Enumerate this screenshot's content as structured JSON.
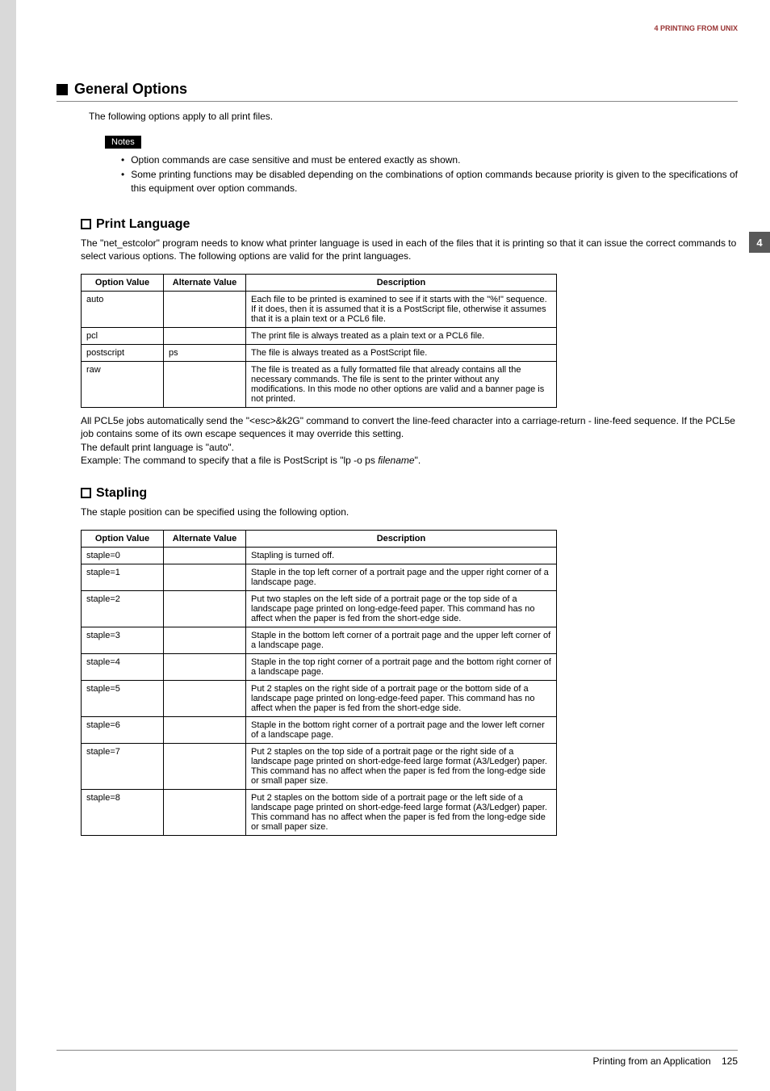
{
  "runningHeader": "4 PRINTING FROM UNIX",
  "chapterTab": "4",
  "section": {
    "title": "General Options",
    "intro": "The following options apply to all print files."
  },
  "notes": {
    "label": "Notes",
    "items": [
      "Option commands are case sensitive and must be entered exactly as shown.",
      "Some printing functions may be disabled depending on the combinations of option commands because priority is given to the specifications of this equipment over option commands."
    ]
  },
  "printLanguage": {
    "title": "Print Language",
    "intro": "The \"net_estcolor\" program needs to know what printer language is used in each of the files that it is printing so that it can issue the correct commands to select various options. The following options are valid for the print languages.",
    "columns": [
      "Option Value",
      "Alternate Value",
      "Description"
    ],
    "rows": [
      {
        "opt": "auto",
        "alt": "",
        "desc": "Each file to be printed is examined to see if it starts with the \"%!\" sequence. If it does, then it is assumed that it is a PostScript file, otherwise it assumes that it is a plain text or a PCL6 file."
      },
      {
        "opt": "pcl",
        "alt": "",
        "desc": "The print file is always treated as a plain text or a PCL6 file."
      },
      {
        "opt": "postscript",
        "alt": "ps",
        "desc": "The file is always treated as a PostScript file."
      },
      {
        "opt": "raw",
        "alt": "",
        "desc": "The file is treated as a fully formatted file that already contains all the necessary commands. The file is sent to the printer without any modifications. In this mode no other options are valid and a banner page is not printed."
      }
    ],
    "post1": "All PCL5e jobs automatically send the \"<esc>&k2G\" command to convert the line-feed character into a carriage-return - line-feed sequence. If the PCL5e job contains some of its own escape sequences it may override this setting.",
    "post2": "The default print language is \"auto\".",
    "post3a": "Example: The command to specify that a file is PostScript is \"lp -o ps ",
    "post3b": "filename",
    "post3c": "\"."
  },
  "stapling": {
    "title": "Stapling",
    "intro": "The staple position can be specified using the following option.",
    "columns": [
      "Option Value",
      "Alternate Value",
      "Description"
    ],
    "rows": [
      {
        "opt": "staple=0",
        "alt": "",
        "desc": "Stapling is turned off."
      },
      {
        "opt": "staple=1",
        "alt": "",
        "desc": "Staple in the top left corner of a portrait page and the upper right corner of a landscape page."
      },
      {
        "opt": "staple=2",
        "alt": "",
        "desc": "Put two staples on the left side of a portrait page or the top side of a landscape page printed on long-edge-feed paper. This command has no affect when the paper is fed from the short-edge side."
      },
      {
        "opt": "staple=3",
        "alt": "",
        "desc": "Staple in the bottom left corner of a portrait page and the upper left corner of a landscape page."
      },
      {
        "opt": "staple=4",
        "alt": "",
        "desc": "Staple in the top right corner of a portrait page and the bottom right corner of a landscape page."
      },
      {
        "opt": "staple=5",
        "alt": "",
        "desc": "Put 2 staples on the right side of a portrait page or the bottom side of a landscape page printed on long-edge-feed paper. This command has no affect when the paper is fed from the short-edge side."
      },
      {
        "opt": "staple=6",
        "alt": "",
        "desc": "Staple in the bottom right corner of a portrait page and the lower left corner of a landscape page."
      },
      {
        "opt": "staple=7",
        "alt": "",
        "desc": "Put 2 staples on the top side of a portrait page or the right side of a landscape page printed on short-edge-feed large format (A3/Ledger) paper. This command has no affect when the paper is fed from the long-edge side or small paper size."
      },
      {
        "opt": "staple=8",
        "alt": "",
        "desc": "Put 2 staples on the bottom side of a portrait page or the left side of a landscape page printed on short-edge-feed large format (A3/Ledger) paper. This command has no affect when the paper is fed from the long-edge side or small paper size."
      }
    ]
  },
  "footer": {
    "text": "Printing from an Application",
    "page": "125"
  },
  "colors": {
    "headerColor": "#993333",
    "tabBg": "#595959",
    "marginBg": "#d9d9d9"
  }
}
